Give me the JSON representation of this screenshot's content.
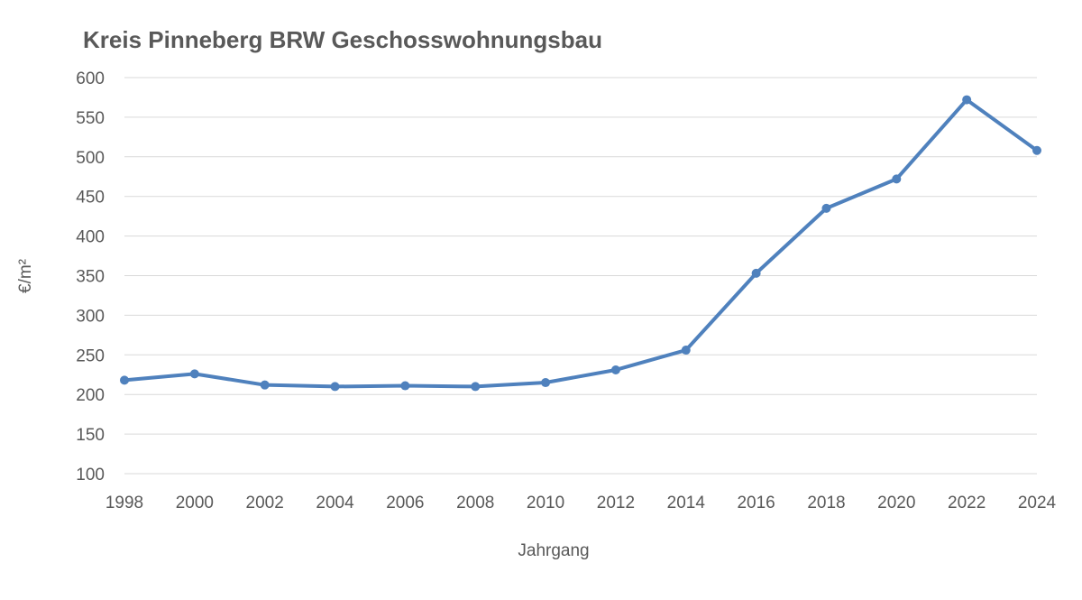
{
  "chart_data": {
    "type": "line",
    "title": "Kreis Pinneberg BRW Geschosswohnungsbau",
    "xlabel": "Jahrgang",
    "ylabel": "€/m²",
    "categories": [
      "1998",
      "2000",
      "2002",
      "2004",
      "2006",
      "2008",
      "2010",
      "2012",
      "2014",
      "2016",
      "2018",
      "2020",
      "2022",
      "2024"
    ],
    "series": [
      {
        "values": [
          218,
          226,
          212,
          210,
          211,
          210,
          215,
          231,
          256,
          353,
          435,
          472,
          572,
          508
        ],
        "color": "#4f81bd"
      }
    ],
    "ylim": [
      100,
      600
    ],
    "yticks": [
      100,
      150,
      200,
      250,
      300,
      350,
      400,
      450,
      500,
      550,
      600
    ],
    "grid": true,
    "legend": "none"
  }
}
